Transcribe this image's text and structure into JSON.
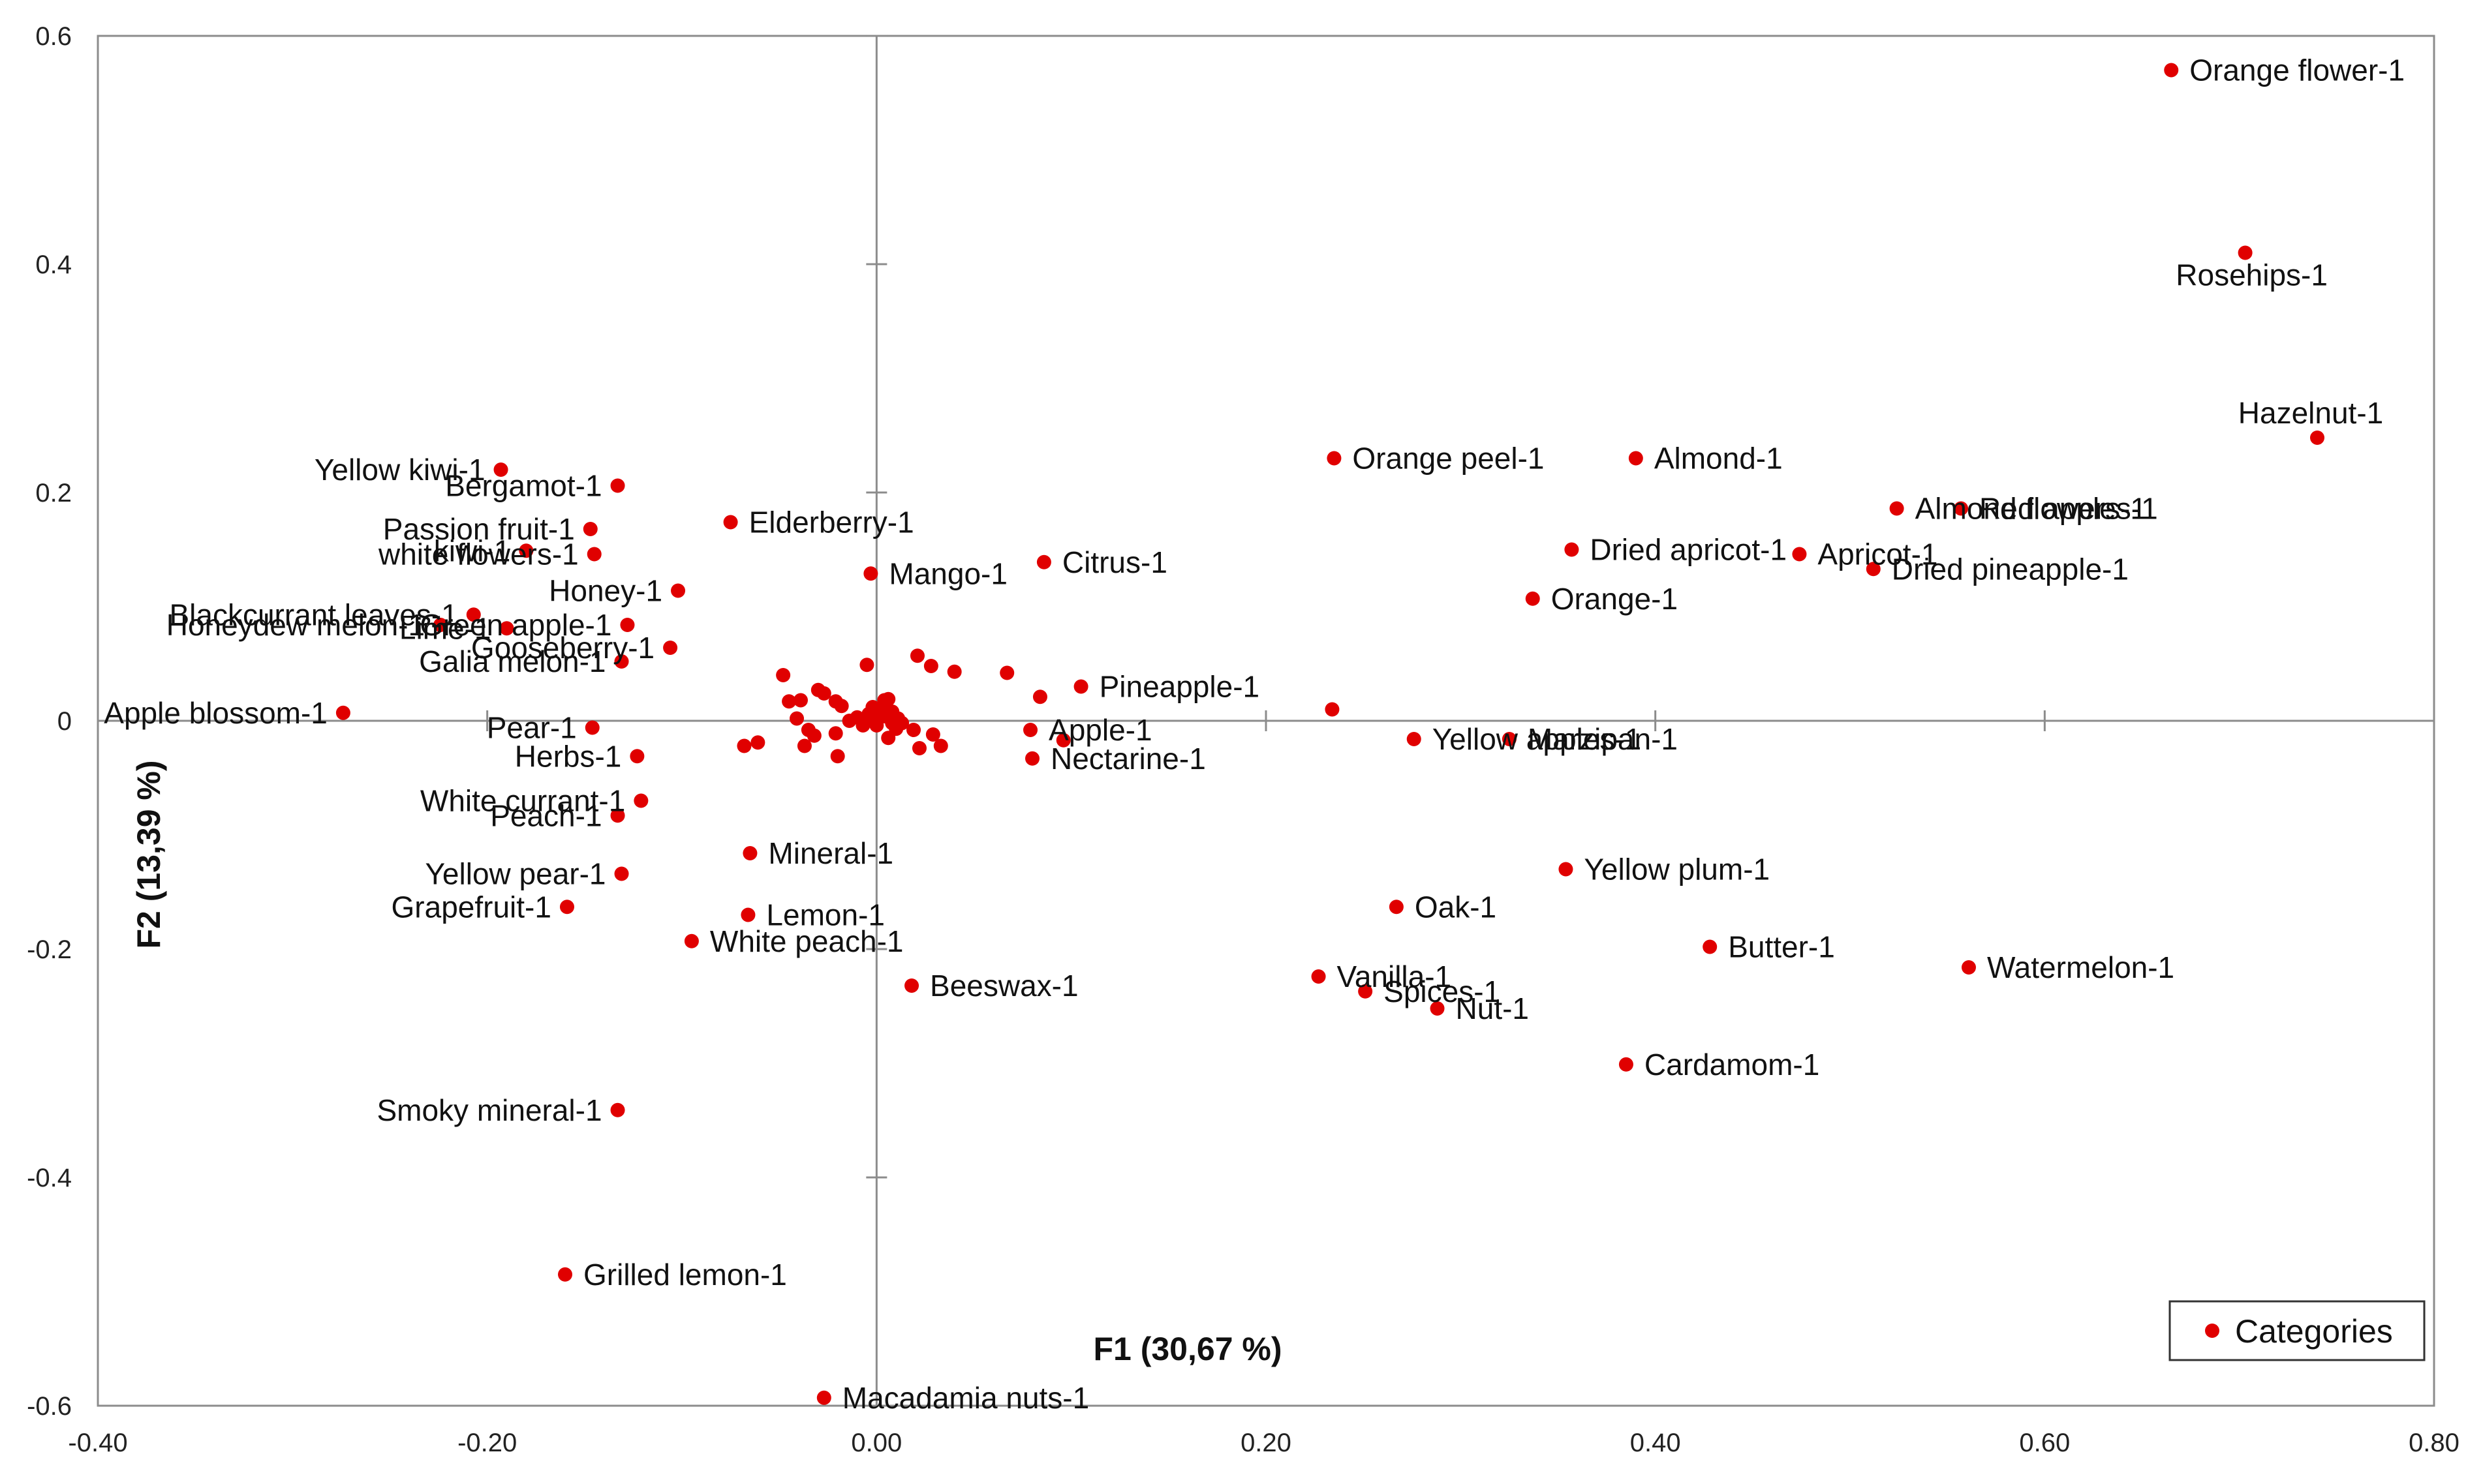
{
  "chart_data": {
    "type": "scatter",
    "xlim": [
      -0.4,
      0.8
    ],
    "ylim": [
      -0.6,
      0.6
    ],
    "xticks": [
      -0.4,
      -0.2,
      0.0,
      0.2,
      0.4,
      0.6,
      0.8
    ],
    "yticks": [
      -0.6,
      -0.4,
      -0.2,
      0,
      0.2,
      0.4,
      0.6
    ],
    "xtick_labels": [
      "-0.40",
      "-0.20",
      "0.00",
      "0.20",
      "0.40",
      "0.60",
      "0.80"
    ],
    "ytick_labels": [
      "-0.6",
      "-0.4",
      "-0.2",
      "0",
      "0.2",
      "0.4",
      "0.6"
    ],
    "xlabel": "F1 (30,67 %)",
    "ylabel": "F2 (13,39 %)",
    "legend": {
      "entry": "Categories",
      "position": "bottom-right"
    },
    "grid": false,
    "marker_color": "#e00000",
    "labeled_points": [
      {
        "label": "Orange flower-1",
        "x": 0.665,
        "y": 0.57
      },
      {
        "label": "Rosehips-1",
        "x": 0.703,
        "y": 0.41
      },
      {
        "label": "Hazelnut-1",
        "x": 0.74,
        "y": 0.248
      },
      {
        "label": "Orange peel-1",
        "x": 0.235,
        "y": 0.23
      },
      {
        "label": "Almond-1",
        "x": 0.39,
        "y": 0.23
      },
      {
        "label": "Almond flowers-1",
        "x": 0.524,
        "y": 0.186
      },
      {
        "label": "Red apples-1",
        "x": 0.557,
        "y": 0.186
      },
      {
        "label": "Dried apricot-1",
        "x": 0.357,
        "y": 0.15
      },
      {
        "label": "Apricot-1",
        "x": 0.474,
        "y": 0.146
      },
      {
        "label": "Dried pineapple-1",
        "x": 0.512,
        "y": 0.133
      },
      {
        "label": "Orange-1",
        "x": 0.337,
        "y": 0.107
      },
      {
        "label": "Marzipan-1",
        "x": 0.325,
        "y": -0.016
      },
      {
        "label": "Yellow apples-1",
        "x": 0.276,
        "y": -0.016
      },
      {
        "label": "Yellow plum-1",
        "x": 0.354,
        "y": -0.13
      },
      {
        "label": "Oak-1",
        "x": 0.267,
        "y": -0.163
      },
      {
        "label": "Butter-1",
        "x": 0.428,
        "y": -0.198
      },
      {
        "label": "Watermelon-1",
        "x": 0.561,
        "y": -0.216
      },
      {
        "label": "Vanilla-1",
        "x": 0.227,
        "y": -0.224
      },
      {
        "label": "Spices-1",
        "x": 0.251,
        "y": -0.237
      },
      {
        "label": "Nut-1",
        "x": 0.288,
        "y": -0.252
      },
      {
        "label": "Cardamom-1",
        "x": 0.385,
        "y": -0.301
      },
      {
        "label": "Yellow kiwi-1",
        "x": -0.193,
        "y": 0.22
      },
      {
        "label": "Bergamot-1",
        "x": -0.133,
        "y": 0.206
      },
      {
        "label": "Passion fruit-1",
        "x": -0.147,
        "y": 0.168
      },
      {
        "label": "Elderberry-1",
        "x": -0.075,
        "y": 0.174
      },
      {
        "label": "kiwi-1",
        "x": -0.18,
        "y": 0.149
      },
      {
        "label": "white flowers-1",
        "x": -0.145,
        "y": 0.146
      },
      {
        "label": "Mango-1",
        "x": -0.003,
        "y": 0.129
      },
      {
        "label": "Citrus-1",
        "x": 0.086,
        "y": 0.139
      },
      {
        "label": "Blackcurrant leaves-1",
        "x": -0.207,
        "y": 0.093
      },
      {
        "label": "Honey-1",
        "x": -0.102,
        "y": 0.114
      },
      {
        "label": "Honeydew melon-1",
        "x": -0.224,
        "y": 0.084
      },
      {
        "label": "Lime-1",
        "x": -0.19,
        "y": 0.081
      },
      {
        "label": "Green apple-1",
        "x": -0.128,
        "y": 0.084
      },
      {
        "label": "Galia melon-1",
        "x": -0.131,
        "y": 0.052
      },
      {
        "label": "Gooseberry-1",
        "x": -0.106,
        "y": 0.064
      },
      {
        "label": "Pineapple-1",
        "x": 0.105,
        "y": 0.03
      },
      {
        "label": "Apple-1",
        "x": 0.079,
        "y": -0.008
      },
      {
        "label": "Nectarine-1",
        "x": 0.08,
        "y": -0.033
      },
      {
        "label": "Apple blossom-1",
        "x": -0.274,
        "y": 0.007
      },
      {
        "label": "Pear-1",
        "x": -0.146,
        "y": -0.006
      },
      {
        "label": "Herbs-1",
        "x": -0.123,
        "y": -0.031
      },
      {
        "label": "Peach-1",
        "x": -0.133,
        "y": -0.083
      },
      {
        "label": "White currant-1",
        "x": -0.121,
        "y": -0.07
      },
      {
        "label": "Yellow pear-1",
        "x": -0.131,
        "y": -0.134
      },
      {
        "label": "Mineral-1",
        "x": -0.065,
        "y": -0.116
      },
      {
        "label": "Grapefruit-1",
        "x": -0.159,
        "y": -0.163
      },
      {
        "label": "Lemon-1",
        "x": -0.066,
        "y": -0.17
      },
      {
        "label": "White peach-1",
        "x": -0.095,
        "y": -0.193
      },
      {
        "label": "Beeswax-1",
        "x": 0.018,
        "y": -0.232
      },
      {
        "label": "Smoky mineral-1",
        "x": -0.133,
        "y": -0.341
      },
      {
        "label": "Grilled lemon-1",
        "x": -0.16,
        "y": -0.485
      },
      {
        "label": "Macadamia nuts-1",
        "x": -0.027,
        "y": -0.593
      }
    ],
    "unlabeled_points": [
      {
        "x": 0.234,
        "y": 0.01
      },
      {
        "x": 0.021,
        "y": 0.057
      },
      {
        "x": 0.028,
        "y": 0.048
      },
      {
        "x": 0.04,
        "y": 0.043
      },
      {
        "x": 0.067,
        "y": 0.042
      },
      {
        "x": -0.005,
        "y": 0.049
      },
      {
        "x": 0.084,
        "y": 0.021
      },
      {
        "x": 0.096,
        "y": -0.017
      },
      {
        "x": -0.048,
        "y": 0.04
      },
      {
        "x": -0.045,
        "y": 0.017
      },
      {
        "x": -0.039,
        "y": 0.018
      },
      {
        "x": -0.03,
        "y": 0.027
      },
      {
        "x": -0.027,
        "y": 0.024
      },
      {
        "x": -0.021,
        "y": 0.017
      },
      {
        "x": -0.018,
        "y": 0.013
      },
      {
        "x": -0.041,
        "y": 0.002
      },
      {
        "x": -0.035,
        "y": -0.008
      },
      {
        "x": -0.037,
        "y": -0.022
      },
      {
        "x": -0.032,
        "y": -0.013
      },
      {
        "x": -0.021,
        "y": -0.011
      },
      {
        "x": -0.02,
        "y": -0.031
      },
      {
        "x": -0.014,
        "y": 0.0
      },
      {
        "x": -0.01,
        "y": 0.003
      },
      {
        "x": -0.007,
        "y": -0.004
      },
      {
        "x": -0.004,
        "y": 0.006
      },
      {
        "x": -0.002,
        "y": 0.001
      },
      {
        "x": 0.0,
        "y": -0.004
      },
      {
        "x": 0.002,
        "y": 0.011
      },
      {
        "x": 0.004,
        "y": 0.004
      },
      {
        "x": 0.006,
        "y": 0.019
      },
      {
        "x": 0.008,
        "y": 0.008
      },
      {
        "x": 0.008,
        "y": -0.002
      },
      {
        "x": 0.006,
        "y": -0.015
      },
      {
        "x": 0.01,
        "y": -0.007
      },
      {
        "x": 0.013,
        "y": -0.002
      },
      {
        "x": 0.019,
        "y": -0.008
      },
      {
        "x": 0.022,
        "y": -0.024
      },
      {
        "x": 0.029,
        "y": -0.012
      },
      {
        "x": 0.033,
        "y": -0.022
      },
      {
        "x": 0.004,
        "y": 0.018
      },
      {
        "x": -0.002,
        "y": 0.012
      },
      {
        "x": 0.011,
        "y": 0.002
      },
      {
        "x": -0.061,
        "y": -0.019
      },
      {
        "x": -0.068,
        "y": -0.022
      }
    ]
  }
}
